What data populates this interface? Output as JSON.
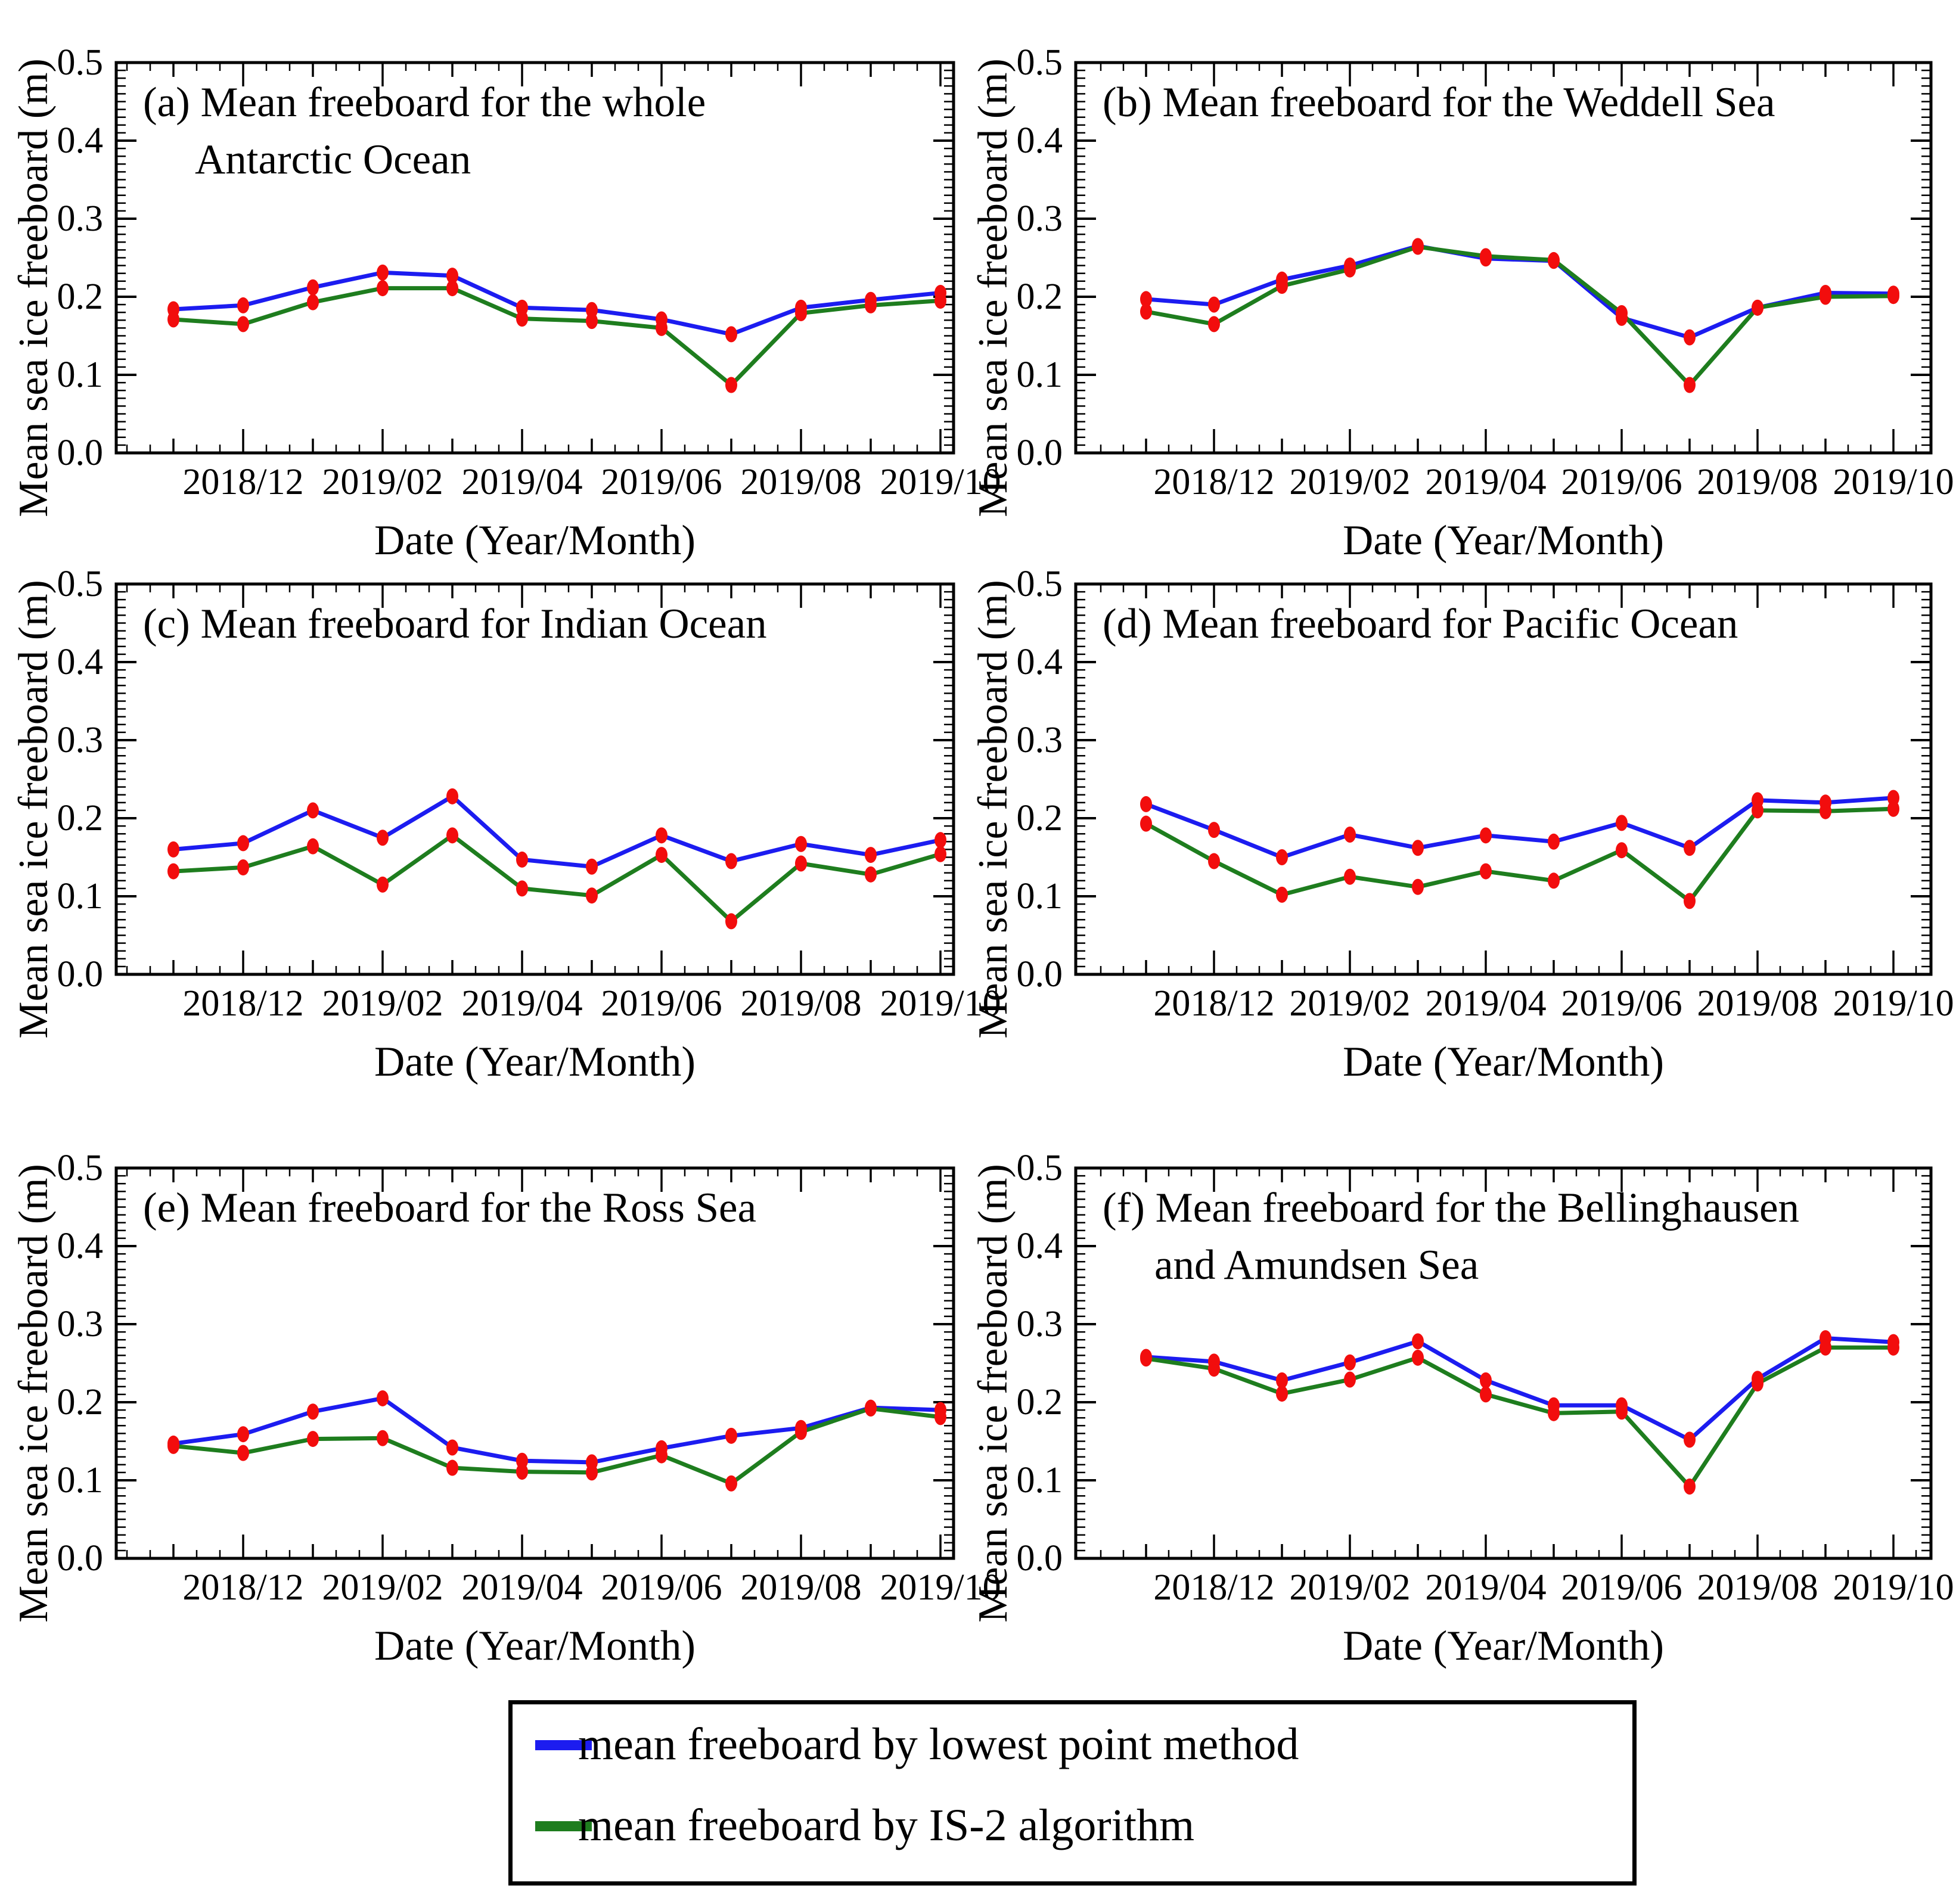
{
  "axes": {
    "y_label": "Mean sea ice freeboard (m)",
    "x_label": "Date (Year/Month)",
    "y_ticks": [
      "0.0",
      "0.1",
      "0.2",
      "0.3",
      "0.4",
      "0.5"
    ],
    "x_tick_labels": [
      "2018/12",
      "2019/02",
      "2019/04",
      "2019/06",
      "2019/08",
      "2019/10"
    ],
    "ylim": [
      0,
      0.5
    ]
  },
  "legend": {
    "items": [
      {
        "label": "mean freeboard by lowest point method",
        "color": "#1c1cf0"
      },
      {
        "label": "mean freeboard by IS-2 algorithm",
        "color": "#1e7d1e"
      }
    ]
  },
  "style": {
    "marker_color": "#f20d0d",
    "axis_color": "#000000"
  },
  "chart_data": [
    {
      "type": "line",
      "title_line1": "(a) Mean freeboard for the whole",
      "title_line2": "Antarctic Ocean",
      "x": [
        "2018/11",
        "2018/12",
        "2019/01",
        "2019/02",
        "2019/03",
        "2019/04",
        "2019/05",
        "2019/06",
        "2019/07",
        "2019/08",
        "2019/09",
        "2019/10"
      ],
      "ylim": [
        0,
        0.5
      ],
      "series": [
        {
          "name": "mean freeboard by lowest point method",
          "color": "#1c1cf0",
          "values": [
            0.184,
            0.189,
            0.212,
            0.231,
            0.227,
            0.186,
            0.183,
            0.171,
            0.152,
            0.186,
            0.196,
            0.205
          ]
        },
        {
          "name": "mean freeboard by IS-2 algorithm",
          "color": "#1e7d1e",
          "values": [
            0.171,
            0.165,
            0.193,
            0.211,
            0.211,
            0.172,
            0.169,
            0.16,
            0.087,
            0.179,
            0.189,
            0.195
          ]
        }
      ]
    },
    {
      "type": "line",
      "title_line1": "(b) Mean freeboard for the Weddell Sea",
      "title_line2": "",
      "x": [
        "2018/11",
        "2018/12",
        "2019/01",
        "2019/02",
        "2019/03",
        "2019/04",
        "2019/05",
        "2019/06",
        "2019/07",
        "2019/08",
        "2019/09",
        "2019/10"
      ],
      "ylim": [
        0,
        0.5
      ],
      "series": [
        {
          "name": "mean freeboard by lowest point method",
          "color": "#1c1cf0",
          "values": [
            0.197,
            0.19,
            0.222,
            0.24,
            0.265,
            0.249,
            0.246,
            0.173,
            0.148,
            0.186,
            0.205,
            0.204
          ]
        },
        {
          "name": "mean freeboard by IS-2 algorithm",
          "color": "#1e7d1e",
          "values": [
            0.181,
            0.165,
            0.214,
            0.235,
            0.264,
            0.252,
            0.247,
            0.179,
            0.087,
            0.186,
            0.2,
            0.201
          ]
        }
      ]
    },
    {
      "type": "line",
      "title_line1": "(c) Mean freeboard for Indian Ocean",
      "title_line2": "",
      "x": [
        "2018/11",
        "2018/12",
        "2019/01",
        "2019/02",
        "2019/03",
        "2019/04",
        "2019/05",
        "2019/06",
        "2019/07",
        "2019/08",
        "2019/09",
        "2019/10"
      ],
      "ylim": [
        0,
        0.5
      ],
      "series": [
        {
          "name": "mean freeboard by lowest point method",
          "color": "#1c1cf0",
          "values": [
            0.16,
            0.168,
            0.21,
            0.175,
            0.228,
            0.147,
            0.138,
            0.178,
            0.145,
            0.167,
            0.153,
            0.172
          ]
        },
        {
          "name": "mean freeboard by IS-2 algorithm",
          "color": "#1e7d1e",
          "values": [
            0.132,
            0.137,
            0.164,
            0.115,
            0.178,
            0.11,
            0.101,
            0.153,
            0.068,
            0.142,
            0.128,
            0.154
          ]
        }
      ]
    },
    {
      "type": "line",
      "title_line1": "(d) Mean freeboard for Pacific Ocean",
      "title_line2": "",
      "x": [
        "2018/11",
        "2018/12",
        "2019/01",
        "2019/02",
        "2019/03",
        "2019/04",
        "2019/05",
        "2019/06",
        "2019/07",
        "2019/08",
        "2019/09",
        "2019/10"
      ],
      "ylim": [
        0,
        0.5
      ],
      "series": [
        {
          "name": "mean freeboard by lowest point method",
          "color": "#1c1cf0",
          "values": [
            0.218,
            0.185,
            0.15,
            0.179,
            0.162,
            0.178,
            0.17,
            0.194,
            0.162,
            0.223,
            0.22,
            0.226
          ]
        },
        {
          "name": "mean freeboard by IS-2 algorithm",
          "color": "#1e7d1e",
          "values": [
            0.193,
            0.145,
            0.102,
            0.125,
            0.112,
            0.132,
            0.12,
            0.159,
            0.094,
            0.21,
            0.209,
            0.212
          ]
        }
      ]
    },
    {
      "type": "line",
      "title_line1": "(e) Mean freeboard for the Ross Sea",
      "title_line2": "",
      "x": [
        "2018/11",
        "2018/12",
        "2019/01",
        "2019/02",
        "2019/03",
        "2019/04",
        "2019/05",
        "2019/06",
        "2019/07",
        "2019/08",
        "2019/09",
        "2019/10"
      ],
      "ylim": [
        0,
        0.5
      ],
      "series": [
        {
          "name": "mean freeboard by lowest point method",
          "color": "#1c1cf0",
          "values": [
            0.147,
            0.159,
            0.188,
            0.205,
            0.142,
            0.125,
            0.123,
            0.141,
            0.157,
            0.167,
            0.193,
            0.19
          ]
        },
        {
          "name": "mean freeboard by IS-2 algorithm",
          "color": "#1e7d1e",
          "values": [
            0.144,
            0.135,
            0.153,
            0.154,
            0.116,
            0.111,
            0.11,
            0.132,
            0.096,
            0.162,
            0.192,
            0.181
          ]
        }
      ]
    },
    {
      "type": "line",
      "title_line1": "(f) Mean freeboard for the Bellinghausen",
      "title_line2": "and Amundsen Sea",
      "x": [
        "2018/11",
        "2018/12",
        "2019/01",
        "2019/02",
        "2019/03",
        "2019/04",
        "2019/05",
        "2019/06",
        "2019/07",
        "2019/08",
        "2019/09",
        "2019/10"
      ],
      "ylim": [
        0,
        0.5
      ],
      "series": [
        {
          "name": "mean freeboard by lowest point method",
          "color": "#1c1cf0",
          "values": [
            0.258,
            0.252,
            0.228,
            0.251,
            0.278,
            0.228,
            0.196,
            0.196,
            0.152,
            0.23,
            0.282,
            0.277
          ]
        },
        {
          "name": "mean freeboard by IS-2 algorithm",
          "color": "#1e7d1e",
          "values": [
            0.256,
            0.243,
            0.211,
            0.229,
            0.257,
            0.21,
            0.186,
            0.188,
            0.092,
            0.224,
            0.27,
            0.27
          ]
        }
      ]
    }
  ]
}
